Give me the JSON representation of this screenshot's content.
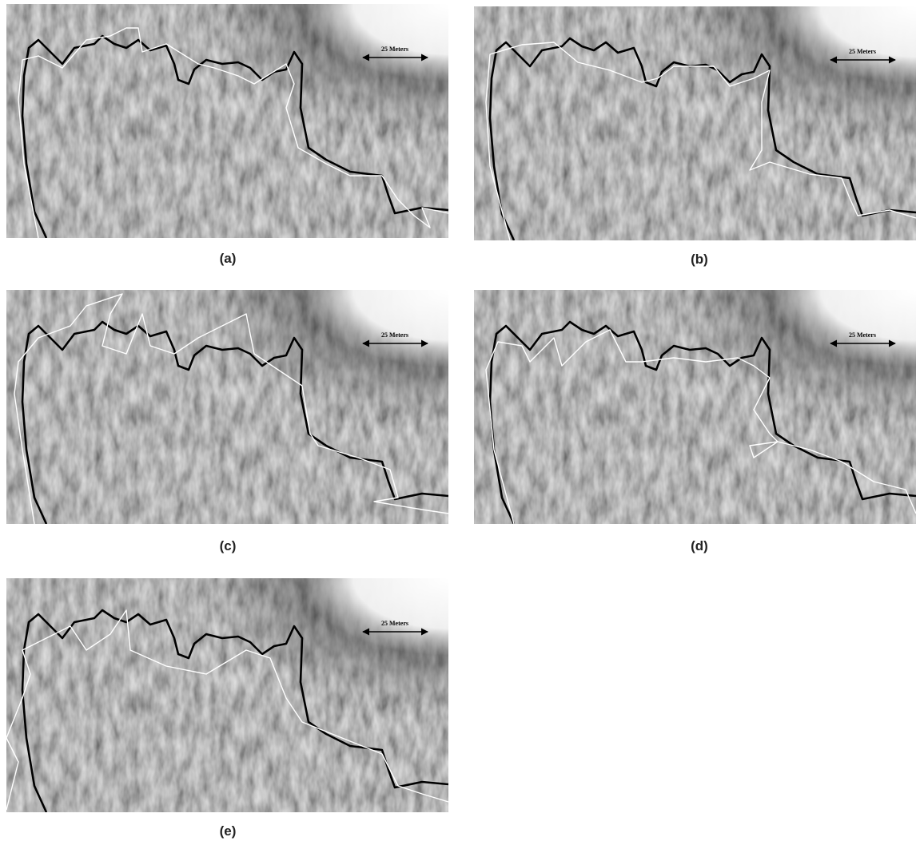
{
  "panels": [
    {
      "label": "(a)",
      "scale_label": "25 Meters"
    },
    {
      "label": "(b)",
      "scale_label": "25 Meters"
    },
    {
      "label": "(c)",
      "scale_label": "25 Meters"
    },
    {
      "label": "(d)",
      "scale_label": "25 Meters"
    },
    {
      "label": "(e)",
      "scale_label": "25 Meters"
    }
  ]
}
